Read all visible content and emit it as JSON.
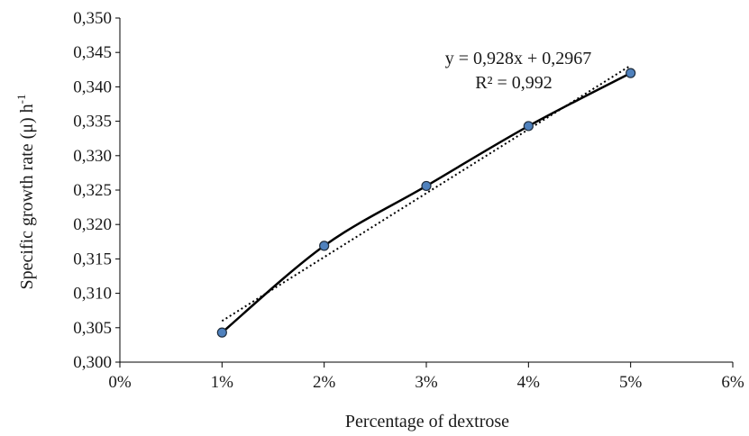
{
  "chart_data": {
    "type": "scatter",
    "title": "",
    "xlabel": "Percentage of dextrose",
    "ylabel": "Specific growth rate (μ) h",
    "ylabel_superscript": "-1",
    "xlim": [
      0,
      0.06
    ],
    "ylim": [
      0.3,
      0.35
    ],
    "x_ticks": [
      "0%",
      "1%",
      "2%",
      "3%",
      "4%",
      "5%",
      "6%"
    ],
    "y_ticks": [
      "0,300",
      "0,305",
      "0,310",
      "0,315",
      "0,320",
      "0,325",
      "0,330",
      "0,335",
      "0,340",
      "0,345",
      "0,350"
    ],
    "grid": false,
    "legend": "none",
    "series": [
      {
        "x": [
          0.01,
          0.02,
          0.03,
          0.04,
          0.05
        ],
        "y": [
          0.3043,
          0.3169,
          0.3256,
          0.3343,
          0.342
        ],
        "line": "smooth solid",
        "marker_color": "#4f81bd",
        "line_color": "#000000"
      }
    ],
    "trendline": {
      "type": "linear",
      "slope": 0.928,
      "intercept": 0.2967,
      "style": "dotted",
      "color": "#000000",
      "equation_label": "y = 0,928x + 0,2967",
      "r2_label": "R² = 0,992"
    }
  }
}
